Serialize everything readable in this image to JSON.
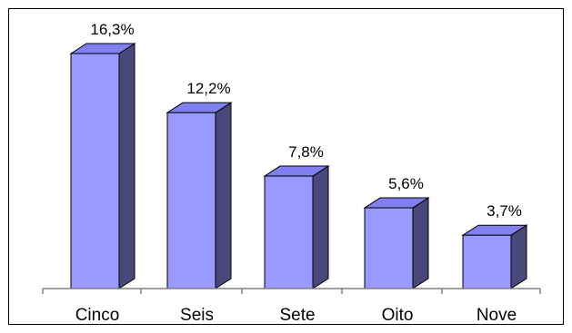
{
  "chart_data": {
    "type": "bar",
    "categories": [
      "Cinco",
      "Seis",
      "Sete",
      "Oito",
      "Nove"
    ],
    "values": [
      16.3,
      12.2,
      7.8,
      5.6,
      3.7
    ],
    "value_labels": [
      "16,3%",
      "12,2%",
      "7,8%",
      "5,6%",
      "3,7%"
    ],
    "title": "",
    "xlabel": "",
    "ylabel": "",
    "ylim": [
      0,
      18
    ],
    "grid": false,
    "legend": "none",
    "bar_style": "3d",
    "colors": {
      "front": "#9999ff",
      "top": "#8080f0",
      "side": "#48487a",
      "edge": "#000000",
      "axis": "#808080"
    }
  }
}
